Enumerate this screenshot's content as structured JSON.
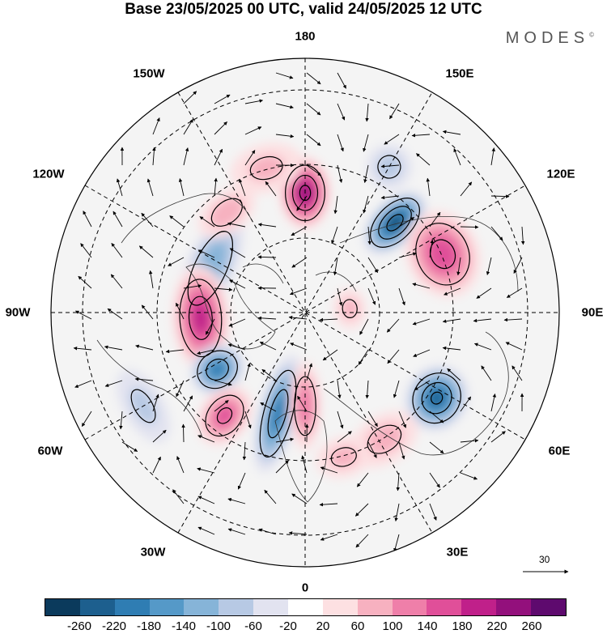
{
  "title": "Base 23/05/2025 00 UTC, valid 24/05/2025 12 UTC",
  "logo": "MODES",
  "logo_mark": "©",
  "longitude_labels": {
    "top": "180",
    "bottom": "0",
    "left": "90W",
    "right": "90E",
    "upper_left_outer": "150W",
    "upper_left_inner": "120W",
    "upper_right_outer": "150E",
    "upper_right_inner": "120E",
    "lower_left_inner": "60W",
    "lower_left_outer": "30W",
    "lower_right_inner": "60E",
    "lower_right_outer": "30E"
  },
  "reference_vector": {
    "label": "30"
  },
  "colorbar": {
    "colors": [
      "#0b3a5c",
      "#1d5f8e",
      "#2f7db3",
      "#5599c8",
      "#86b4d8",
      "#b7c9e4",
      "#e2e3f0",
      "#ffffff",
      "#fde0e2",
      "#f7b1c0",
      "#ef7fa9",
      "#e04f99",
      "#c0208a",
      "#93107c",
      "#5e0a6e"
    ],
    "ticks": [
      "-260",
      "-220",
      "-180",
      "-140",
      "-100",
      "-60",
      "-20",
      "20",
      "60",
      "100",
      "140",
      "180",
      "220",
      "260"
    ]
  },
  "anomalies": [
    {
      "lon": 135,
      "colat": 34,
      "value": -260,
      "rx": 28,
      "ry": 48
    },
    {
      "lon": 180,
      "colat": 32,
      "value": 240,
      "rx": 32,
      "ry": 45
    },
    {
      "lon": 113,
      "colat": 40,
      "value": 170,
      "rx": 55,
      "ry": 45
    },
    {
      "lon": 57,
      "colat": 42,
      "value": -230,
      "rx": 42,
      "ry": 38
    },
    {
      "lon": -115,
      "colat": 28,
      "value": -130,
      "rx": 75,
      "ry": 30
    },
    {
      "lon": -87,
      "colat": 28,
      "value": 200,
      "rx": 65,
      "ry": 35
    },
    {
      "lon": -57,
      "colat": 28,
      "value": -200,
      "rx": 30,
      "ry": 35
    },
    {
      "lon": -38,
      "colat": 35,
      "value": 150,
      "rx": 30,
      "ry": 40
    },
    {
      "lon": -15,
      "colat": 28,
      "value": -200,
      "rx": 24,
      "ry": 75
    },
    {
      "lon": 0,
      "colat": 25,
      "value": 130,
      "rx": 20,
      "ry": 55
    },
    {
      "lon": 95,
      "colat": 12,
      "value": 60,
      "rx": 25,
      "ry": 20
    },
    {
      "lon": 32,
      "colat": 40,
      "value": 70,
      "rx": 45,
      "ry": 30
    },
    {
      "lon": -142,
      "colat": 34,
      "value": 80,
      "rx": 40,
      "ry": 25
    },
    {
      "lon": 150,
      "colat": 45,
      "value": -70,
      "rx": 28,
      "ry": 28
    },
    {
      "lon": -165,
      "colat": 40,
      "value": 60,
      "rx": 45,
      "ry": 30
    },
    {
      "lon": 15,
      "colat": 40,
      "value": 60,
      "rx": 35,
      "ry": 25
    },
    {
      "lon": -60,
      "colat": 50,
      "value": -60,
      "rx": 50,
      "ry": 25
    }
  ]
}
